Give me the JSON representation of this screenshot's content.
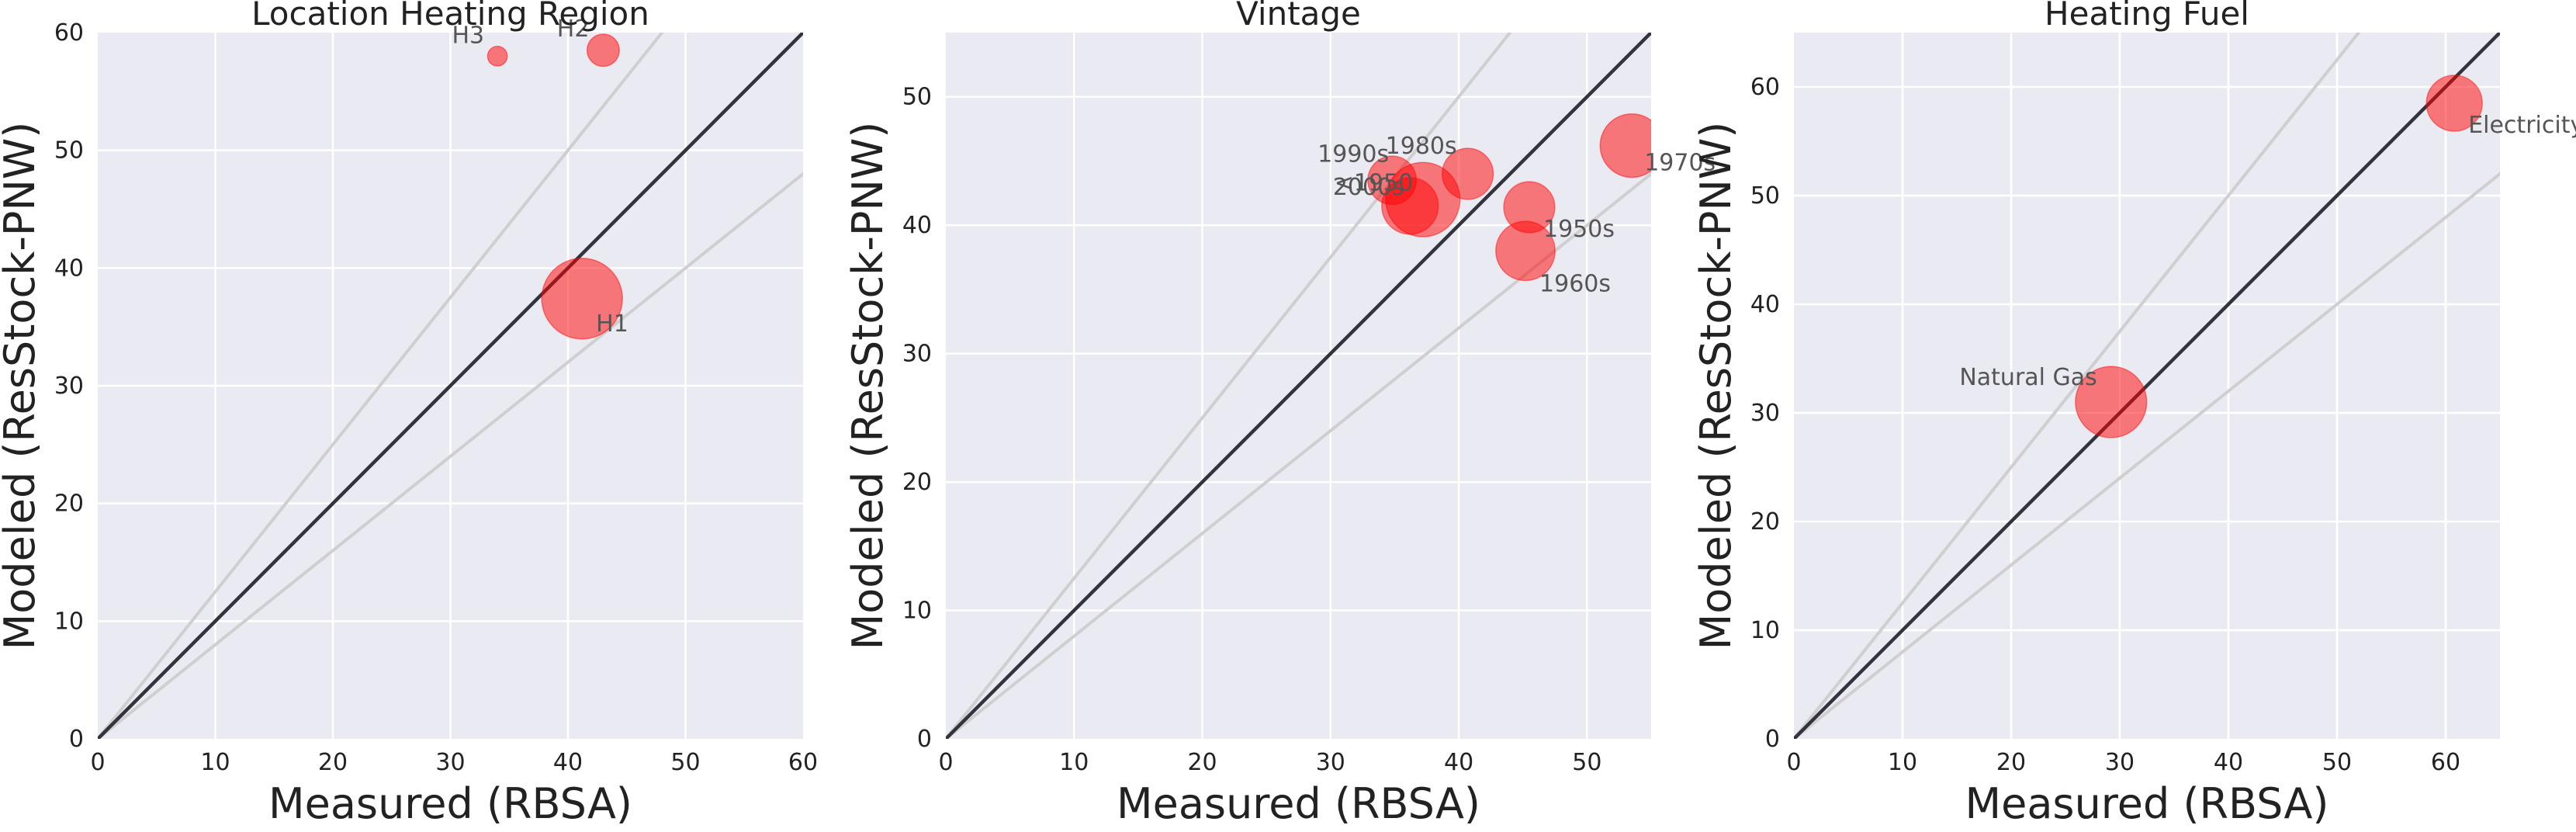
{
  "chart_data": [
    {
      "type": "scatter",
      "title": "Location Heating Region",
      "xlabel": "Measured (RBSA)",
      "ylabel": "Modeled (ResStock-PNW)",
      "xlim": [
        0,
        60
      ],
      "ylim": [
        0,
        60
      ],
      "xticks": [
        0,
        10,
        20,
        30,
        40,
        50,
        60
      ],
      "yticks": [
        0,
        10,
        20,
        30,
        40,
        50,
        60
      ],
      "grid": true,
      "reference_lines": {
        "identity": 1.0,
        "upper_band": 1.25,
        "lower_band": 0.8
      },
      "points": [
        {
          "label": "H3",
          "x": 34.0,
          "y": 58.0,
          "weight": 6
        },
        {
          "label": "H2",
          "x": 43.0,
          "y": 58.5,
          "weight": 16
        },
        {
          "label": "H1",
          "x": 41.2,
          "y": 37.4,
          "weight": 100
        }
      ]
    },
    {
      "type": "scatter",
      "title": "Vintage",
      "xlabel": "Measured (RBSA)",
      "ylabel": "Modeled (ResStock-PNW)",
      "xlim": [
        0,
        55
      ],
      "ylim": [
        0,
        55
      ],
      "xticks": [
        0,
        10,
        20,
        30,
        40,
        50
      ],
      "yticks": [
        0,
        10,
        20,
        30,
        40,
        50
      ],
      "grid": true,
      "reference_lines": {
        "identity": 1.0,
        "upper_band": 1.25,
        "lower_band": 0.8
      },
      "points": [
        {
          "label": "1990s",
          "x": 34.8,
          "y": 43.5,
          "weight": 36
        },
        {
          "label": "1980s",
          "x": 40.7,
          "y": 44.0,
          "weight": 40
        },
        {
          "label": "<1950",
          "x": 36.2,
          "y": 41.5,
          "weight": 49
        },
        {
          "label": "2000s",
          "x": 37.2,
          "y": 42.0,
          "weight": 85
        },
        {
          "label": "1970s",
          "x": 53.5,
          "y": 46.2,
          "weight": 62
        },
        {
          "label": "1950s",
          "x": 45.5,
          "y": 41.4,
          "weight": 40
        },
        {
          "label": "1960s",
          "x": 45.2,
          "y": 38.0,
          "weight": 54
        }
      ]
    },
    {
      "type": "scatter",
      "title": "Heating Fuel",
      "xlabel": "Measured (RBSA)",
      "ylabel": "Modeled (ResStock-PNW)",
      "xlim": [
        0,
        65
      ],
      "ylim": [
        0,
        65
      ],
      "xticks": [
        0,
        10,
        20,
        30,
        40,
        50,
        60
      ],
      "yticks": [
        0,
        10,
        20,
        30,
        40,
        50,
        60
      ],
      "grid": true,
      "reference_lines": {
        "identity": 1.0,
        "upper_band": 1.25,
        "lower_band": 0.8
      },
      "points": [
        {
          "label": "Electricity",
          "x": 60.8,
          "y": 58.5,
          "weight": 48
        },
        {
          "label": "Natural Gas",
          "x": 29.2,
          "y": 31.0,
          "weight": 78
        }
      ]
    }
  ],
  "colors": {
    "plot_background": "#eaeaf2",
    "grid": "#ffffff",
    "bubble": "#ff0000",
    "identity_line": "#33333d",
    "band_lines": "#cfcfcf"
  }
}
